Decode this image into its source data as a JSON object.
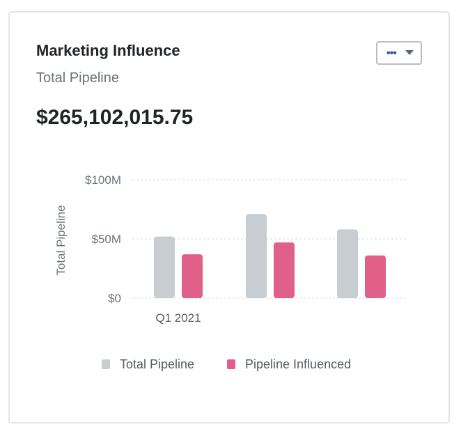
{
  "card": {
    "title": "Marketing Influence",
    "subtitle": "Total Pipeline",
    "total": "$265,102,015.75"
  },
  "menu": {
    "icon": "more-dots-icon"
  },
  "colors": {
    "total_pipeline": "#c8cdd1",
    "pipeline_influenced": "#e0608a",
    "gridline": "#d5d9dd"
  },
  "chart_data": {
    "type": "bar",
    "ylabel": "Total Pipeline",
    "categories": [
      "Q1 2021",
      "",
      ""
    ],
    "series": [
      {
        "name": "Total Pipeline",
        "values": [
          52,
          71,
          58
        ]
      },
      {
        "name": "Pipeline Influenced",
        "values": [
          37,
          47,
          36
        ]
      }
    ],
    "ylim": [
      0,
      100
    ],
    "yticks": [
      {
        "value": 0,
        "label": "$0"
      },
      {
        "value": 50,
        "label": "$50M"
      },
      {
        "value": 100,
        "label": "$100M"
      }
    ],
    "grid": true,
    "legend": "bottom"
  }
}
